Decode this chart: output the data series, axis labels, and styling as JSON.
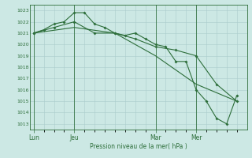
{
  "background_color": "#cce8e4",
  "grid_color": "#aacccc",
  "line_color": "#2d6e3a",
  "title": "Pression niveau de la mer( hPa )",
  "xlabel_ticks": [
    "Lun",
    "Jeu",
    "Mar",
    "Mer"
  ],
  "xlabel_tick_positions": [
    0,
    12,
    36,
    48
  ],
  "ylim": [
    1012.5,
    1023.5
  ],
  "yticks": [
    1013,
    1014,
    1015,
    1016,
    1017,
    1018,
    1019,
    1020,
    1021,
    1022,
    1023
  ],
  "series1_x": [
    0,
    3,
    6,
    9,
    12,
    15,
    18,
    21,
    24,
    27,
    30,
    33,
    36,
    39,
    42,
    45,
    48,
    51,
    54,
    57,
    60
  ],
  "series1_y": [
    1021.0,
    1021.3,
    1021.8,
    1022.0,
    1022.8,
    1022.8,
    1021.8,
    1021.5,
    1021.0,
    1020.8,
    1021.0,
    1020.5,
    1020.0,
    1019.8,
    1018.5,
    1018.5,
    1016.0,
    1015.0,
    1013.5,
    1013.0,
    1015.5
  ],
  "series2_x": [
    0,
    6,
    12,
    18,
    24,
    30,
    36,
    42,
    48,
    54,
    60
  ],
  "series2_y": [
    1021.0,
    1021.5,
    1022.0,
    1021.0,
    1021.0,
    1020.5,
    1019.8,
    1019.5,
    1019.0,
    1016.5,
    1015.0
  ],
  "series3_x": [
    0,
    12,
    24,
    36,
    48,
    60
  ],
  "series3_y": [
    1021.0,
    1021.5,
    1021.0,
    1019.0,
    1016.5,
    1015.0
  ],
  "vline_positions": [
    0,
    12,
    36,
    48
  ],
  "xlim": [
    -1,
    63
  ]
}
